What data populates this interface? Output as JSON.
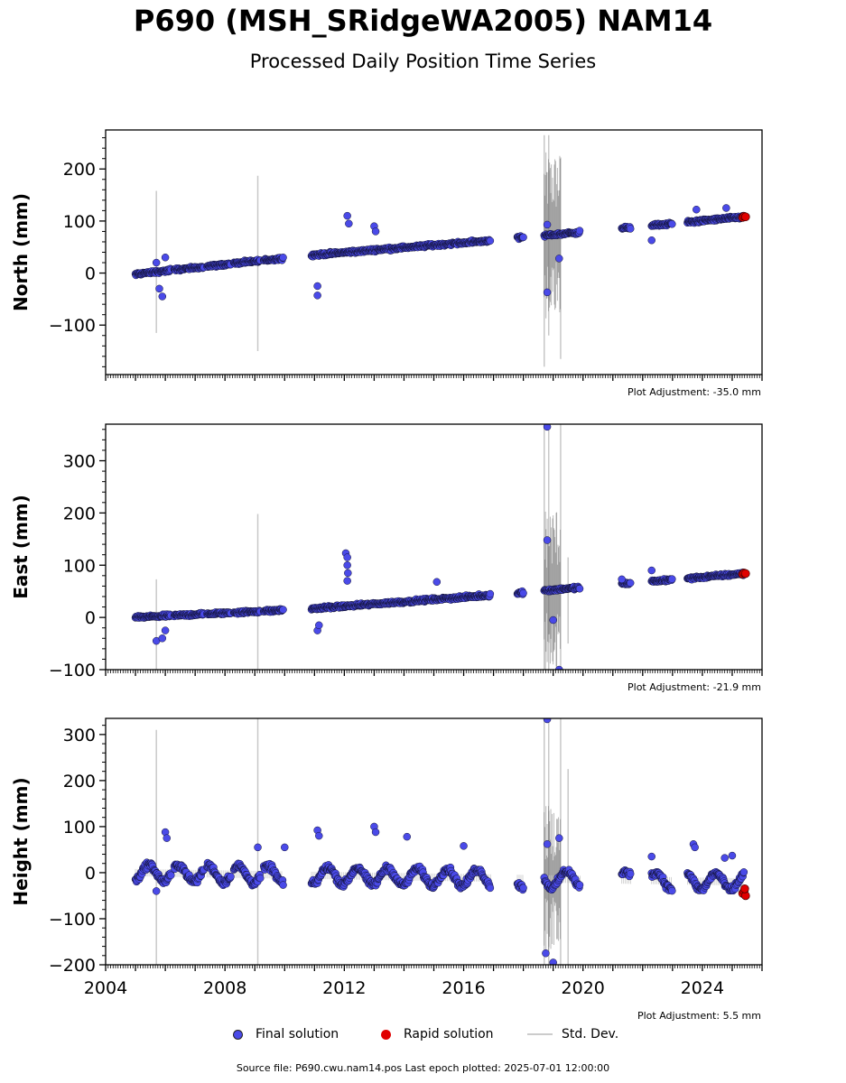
{
  "header": {
    "title": "P690 (MSH_SRidgeWA2005) NAM14",
    "subtitle": "Processed Daily Position Time Series"
  },
  "legend": {
    "final": "Final solution",
    "rapid": "Rapid solution",
    "std": "Std. Dev."
  },
  "footer": {
    "source": "Source file: P690.cwu.nam14.pos  Last epoch plotted: 2025-07-01 12:00:00"
  },
  "colors": {
    "final": "#4a4ae8",
    "rapid": "#e00000",
    "std": "#c8c8c8",
    "std_dark": "#6e6e6e"
  },
  "chart_data": [
    {
      "type": "scatter",
      "ylabel": "North (mm)",
      "adjustment": "Plot Adjustment: -35.0 mm",
      "xlim": [
        2004,
        2026
      ],
      "ylim": [
        -195,
        275
      ],
      "yticks": [
        -100,
        0,
        100,
        200
      ],
      "trend": [
        [
          2005.0,
          -2
        ],
        [
          2011.0,
          35
        ],
        [
          2017.0,
          63
        ],
        [
          2025.4,
          108
        ]
      ],
      "segments": [
        [
          2005.0,
          2006.2
        ],
        [
          2006.3,
          2007.3
        ],
        [
          2007.4,
          2008.2
        ],
        [
          2008.3,
          2009.2
        ],
        [
          2009.3,
          2009.95
        ],
        [
          2010.9,
          2011.2
        ],
        [
          2011.2,
          2016.9
        ],
        [
          2017.8,
          2018.0
        ],
        [
          2018.7,
          2019.9
        ],
        [
          2021.3,
          2021.6
        ],
        [
          2022.3,
          2023.0
        ],
        [
          2023.5,
          2025.4
        ]
      ],
      "outliers": [
        [
          2005.8,
          -30
        ],
        [
          2005.9,
          -45
        ],
        [
          2011.1,
          -43
        ],
        [
          2011.1,
          -25
        ],
        [
          2012.1,
          110
        ],
        [
          2012.15,
          95
        ],
        [
          2013.0,
          90
        ],
        [
          2013.05,
          80
        ],
        [
          2018.8,
          -37
        ],
        [
          2019.2,
          28
        ],
        [
          2022.3,
          63
        ],
        [
          2023.8,
          122
        ],
        [
          2024.8,
          125
        ],
        [
          2005.7,
          20
        ],
        [
          2006.0,
          30
        ],
        [
          2018.8,
          93
        ]
      ],
      "vlines": [
        [
          2005.7,
          -115,
          158
        ],
        [
          2009.1,
          -150,
          187
        ],
        [
          2018.7,
          -180,
          265
        ],
        [
          2018.85,
          -120,
          265
        ],
        [
          2019.25,
          -165,
          222
        ]
      ],
      "dark_band": [
        2018.7,
        2019.9
      ],
      "rapid": [
        [
          2025.35,
          107
        ],
        [
          2025.4,
          109
        ],
        [
          2025.45,
          108
        ]
      ]
    },
    {
      "type": "scatter",
      "ylabel": "East (mm)",
      "adjustment": "Plot Adjustment: -21.9 mm",
      "xlim": [
        2004,
        2026
      ],
      "ylim": [
        -100,
        370
      ],
      "yticks": [
        -100,
        0,
        100,
        200,
        300
      ],
      "trend": [
        [
          2005.0,
          0
        ],
        [
          2011.0,
          17
        ],
        [
          2017.0,
          43
        ],
        [
          2025.4,
          84
        ]
      ],
      "segments": [
        [
          2005.0,
          2006.2
        ],
        [
          2006.3,
          2007.3
        ],
        [
          2007.4,
          2008.2
        ],
        [
          2008.3,
          2009.2
        ],
        [
          2009.3,
          2009.95
        ],
        [
          2010.9,
          2011.2
        ],
        [
          2011.2,
          2016.9
        ],
        [
          2017.8,
          2018.0
        ],
        [
          2018.7,
          2019.9
        ],
        [
          2021.3,
          2021.6
        ],
        [
          2022.3,
          2023.0
        ],
        [
          2023.5,
          2025.4
        ]
      ],
      "outliers": [
        [
          2005.7,
          -45
        ],
        [
          2005.9,
          -40
        ],
        [
          2006.0,
          -25
        ],
        [
          2011.1,
          -25
        ],
        [
          2011.15,
          -15
        ],
        [
          2012.05,
          123
        ],
        [
          2012.1,
          115
        ],
        [
          2012.1,
          100
        ],
        [
          2012.12,
          85
        ],
        [
          2012.1,
          70
        ],
        [
          2015.1,
          68
        ],
        [
          2018.8,
          365
        ],
        [
          2018.8,
          148
        ],
        [
          2019.0,
          -5
        ],
        [
          2019.2,
          -100
        ],
        [
          2022.3,
          90
        ],
        [
          2021.3,
          73
        ]
      ],
      "vlines": [
        [
          2005.7,
          -100,
          73
        ],
        [
          2009.1,
          -100,
          198
        ],
        [
          2018.7,
          -100,
          370
        ],
        [
          2018.85,
          -100,
          370
        ],
        [
          2019.25,
          -100,
          370
        ],
        [
          2019.5,
          -50,
          115
        ]
      ],
      "dark_band": [
        2018.7,
        2019.9
      ],
      "rapid": [
        [
          2025.35,
          83
        ],
        [
          2025.4,
          85
        ],
        [
          2025.45,
          84
        ]
      ]
    },
    {
      "type": "scatter",
      "ylabel": "Height (mm)",
      "adjustment": "Plot Adjustment: 5.5 mm",
      "xlim": [
        2004,
        2026
      ],
      "ylim": [
        -200,
        335
      ],
      "yticks": [
        -200,
        -100,
        0,
        100,
        200,
        300
      ],
      "xticks": [
        2004,
        2008,
        2012,
        2016,
        2020,
        2024
      ],
      "trend": [
        [
          2005.0,
          0
        ],
        [
          2025.4,
          -20
        ]
      ],
      "seasonal_amplitude": 18,
      "segments": [
        [
          2005.0,
          2006.2
        ],
        [
          2006.3,
          2007.3
        ],
        [
          2007.4,
          2008.2
        ],
        [
          2008.3,
          2009.2
        ],
        [
          2009.3,
          2009.95
        ],
        [
          2010.9,
          2011.2
        ],
        [
          2011.2,
          2016.9
        ],
        [
          2017.8,
          2018.0
        ],
        [
          2018.7,
          2019.9
        ],
        [
          2021.3,
          2021.6
        ],
        [
          2022.3,
          2023.0
        ],
        [
          2023.5,
          2025.4
        ]
      ],
      "outliers": [
        [
          2005.7,
          -40
        ],
        [
          2006.0,
          88
        ],
        [
          2006.05,
          75
        ],
        [
          2009.1,
          55
        ],
        [
          2010.0,
          55
        ],
        [
          2011.1,
          92
        ],
        [
          2011.15,
          80
        ],
        [
          2013.0,
          100
        ],
        [
          2013.05,
          88
        ],
        [
          2014.1,
          78
        ],
        [
          2016.0,
          58
        ],
        [
          2018.8,
          333
        ],
        [
          2018.75,
          -175
        ],
        [
          2018.8,
          62
        ],
        [
          2019.0,
          -195
        ],
        [
          2019.2,
          75
        ],
        [
          2022.3,
          35
        ],
        [
          2023.7,
          62
        ],
        [
          2023.75,
          55
        ],
        [
          2025.0,
          37
        ],
        [
          2024.75,
          32
        ]
      ],
      "vlines": [
        [
          2005.7,
          -200,
          310
        ],
        [
          2009.1,
          -200,
          335
        ],
        [
          2018.7,
          -200,
          335
        ],
        [
          2018.85,
          -200,
          335
        ],
        [
          2019.25,
          -200,
          335
        ],
        [
          2019.5,
          -200,
          225
        ]
      ],
      "dark_band": [
        2018.7,
        2019.9
      ],
      "rapid": [
        [
          2025.35,
          -45
        ],
        [
          2025.4,
          -40
        ],
        [
          2025.45,
          -50
        ],
        [
          2025.42,
          -35
        ]
      ]
    }
  ]
}
